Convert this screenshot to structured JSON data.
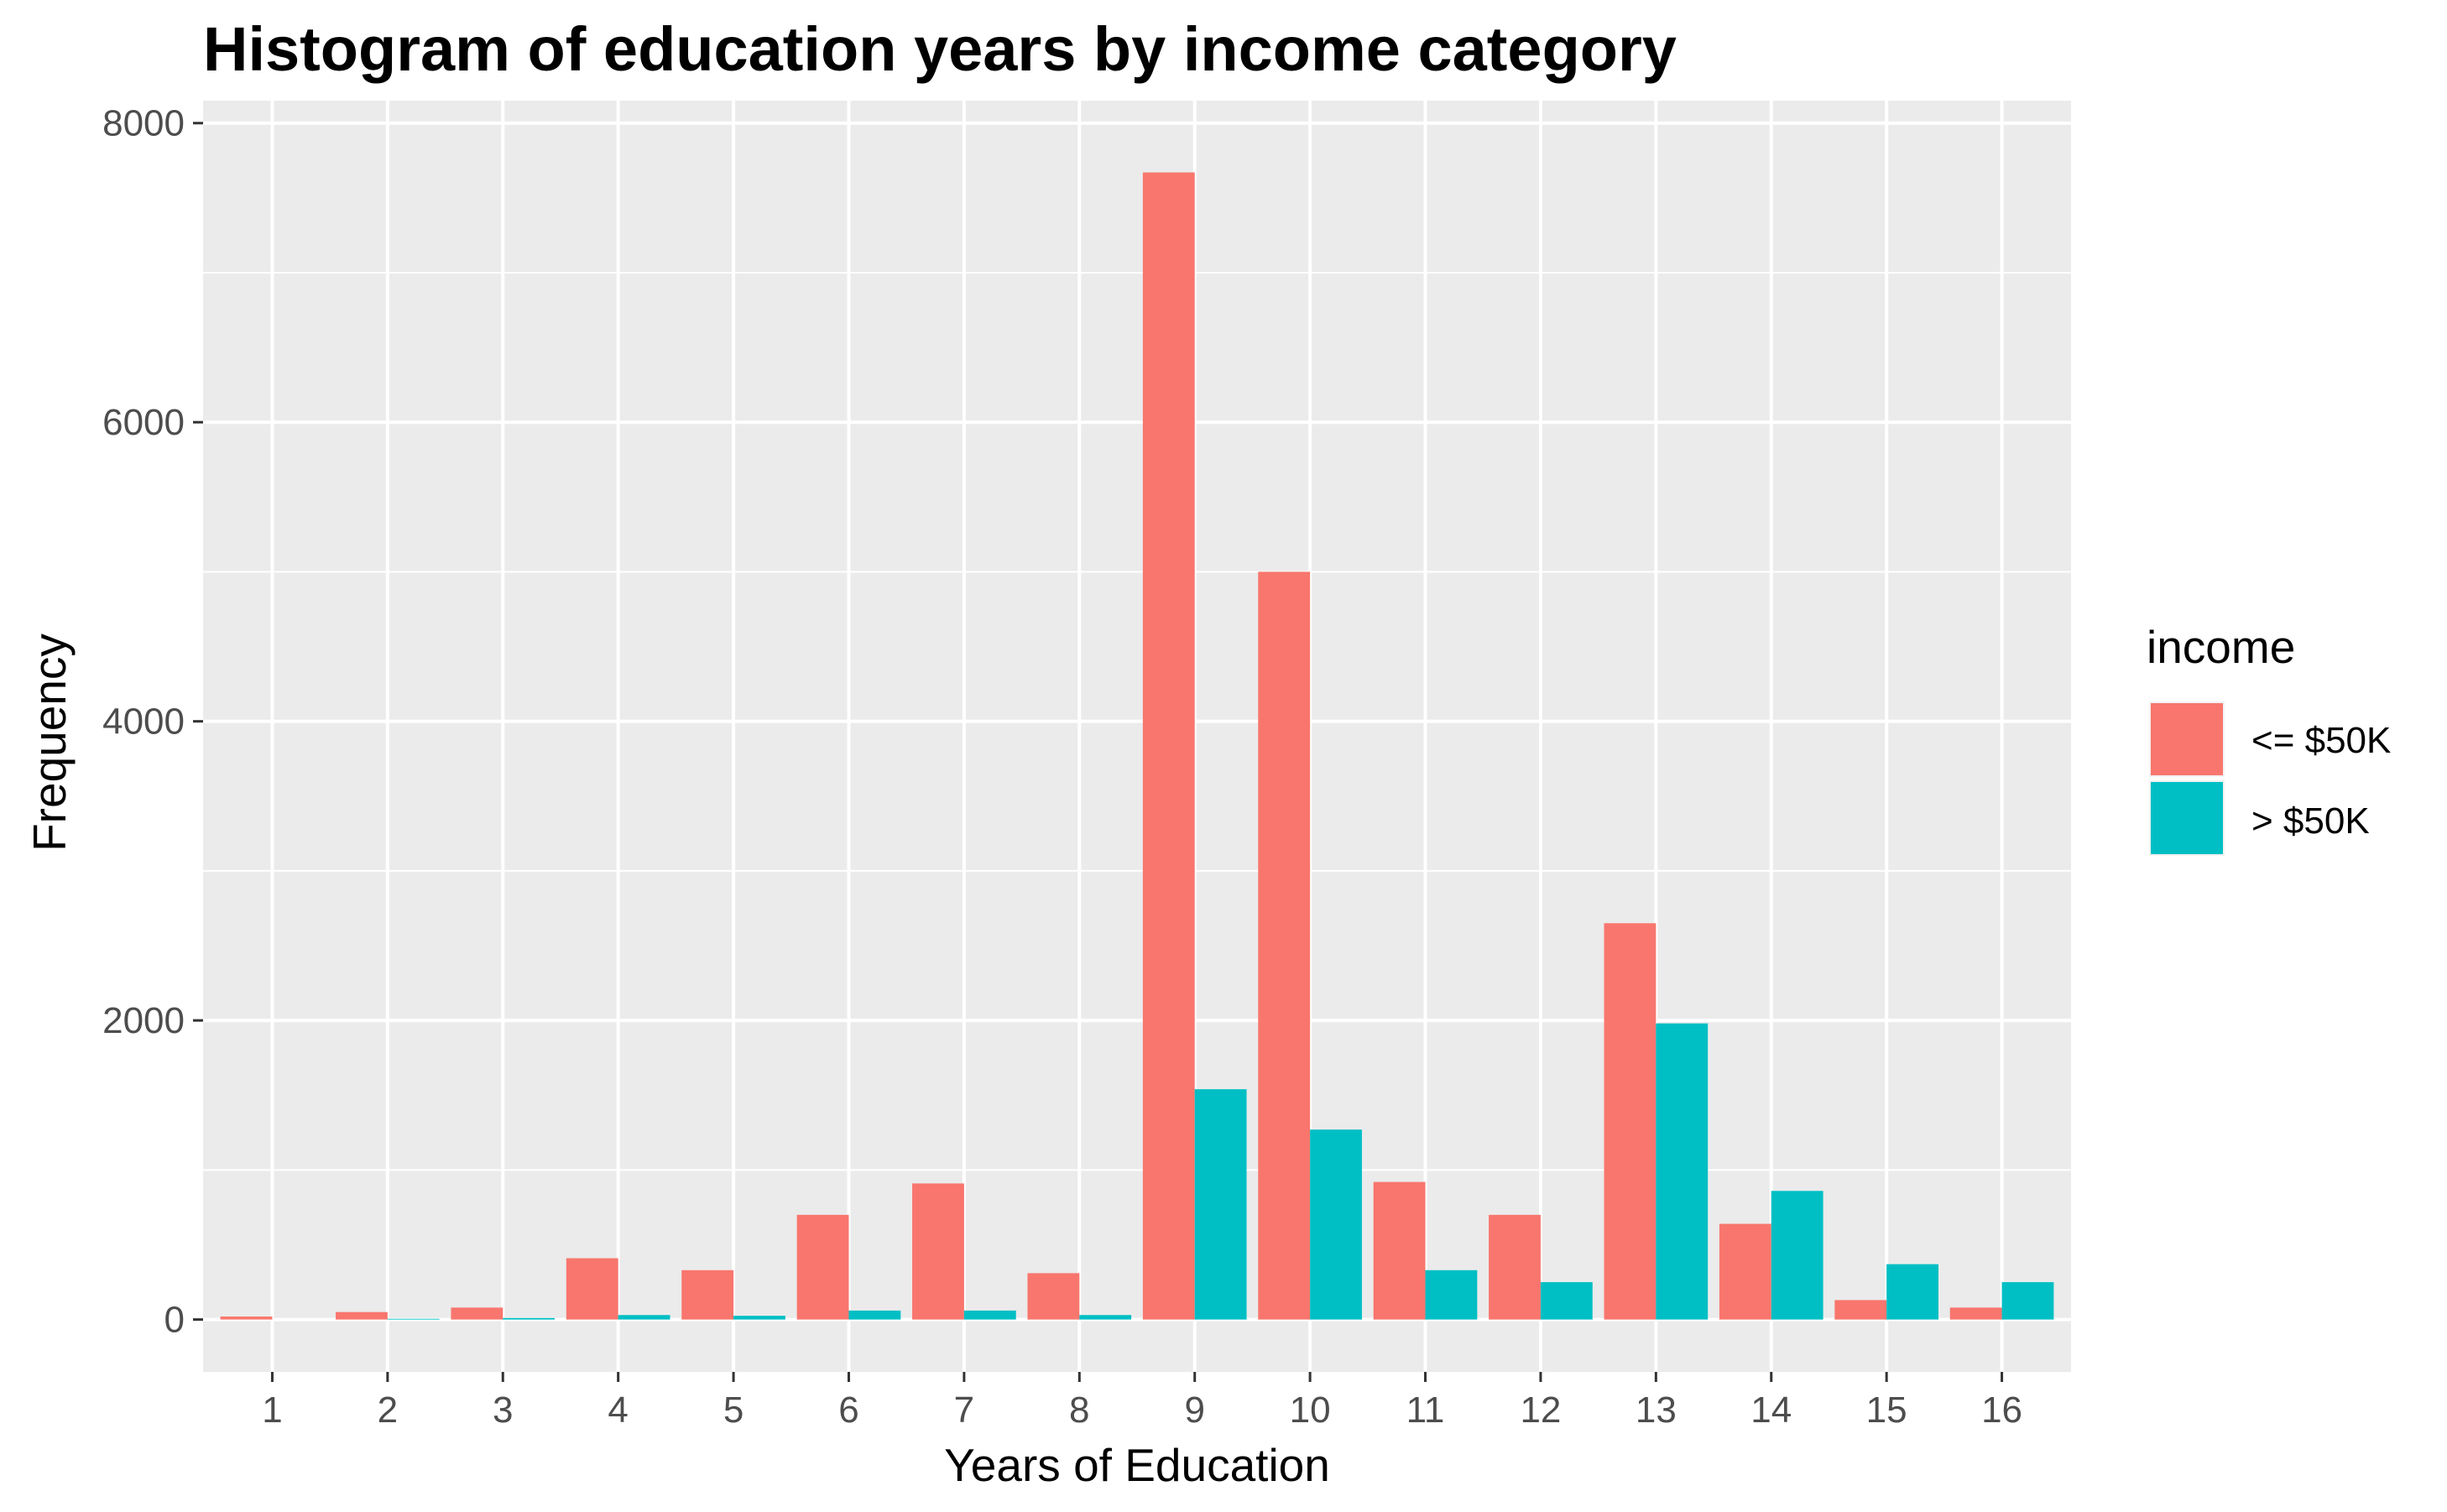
{
  "chart_data": {
    "type": "bar",
    "title": "Histogram of education years by income category",
    "xlabel": "Years of Education",
    "ylabel": "Frequency",
    "categories": [
      "1",
      "2",
      "3",
      "4",
      "5",
      "6",
      "7",
      "8",
      "9",
      "10",
      "11",
      "12",
      "13",
      "14",
      "15",
      "16"
    ],
    "series": [
      {
        "name": "<= $50K",
        "color": "#F8766D",
        "values": [
          20,
          50,
          80,
          410,
          330,
          700,
          910,
          310,
          7670,
          5000,
          920,
          700,
          2650,
          640,
          130,
          80
        ]
      },
      {
        "name": "> $50K",
        "color": "#00BFC4",
        "values": [
          0,
          5,
          10,
          30,
          25,
          60,
          60,
          30,
          1540,
          1270,
          330,
          250,
          1980,
          860,
          370,
          250
        ]
      }
    ],
    "yticks": [
      0,
      2000,
      4000,
      6000,
      8000
    ],
    "ytick_labels": [
      "0",
      "2000",
      "4000",
      "6000",
      "8000"
    ],
    "ylim": [
      -350,
      8150
    ],
    "legend": {
      "title": "income",
      "position": "right"
    },
    "panel_background": "#EBEBEB",
    "grid": true
  }
}
